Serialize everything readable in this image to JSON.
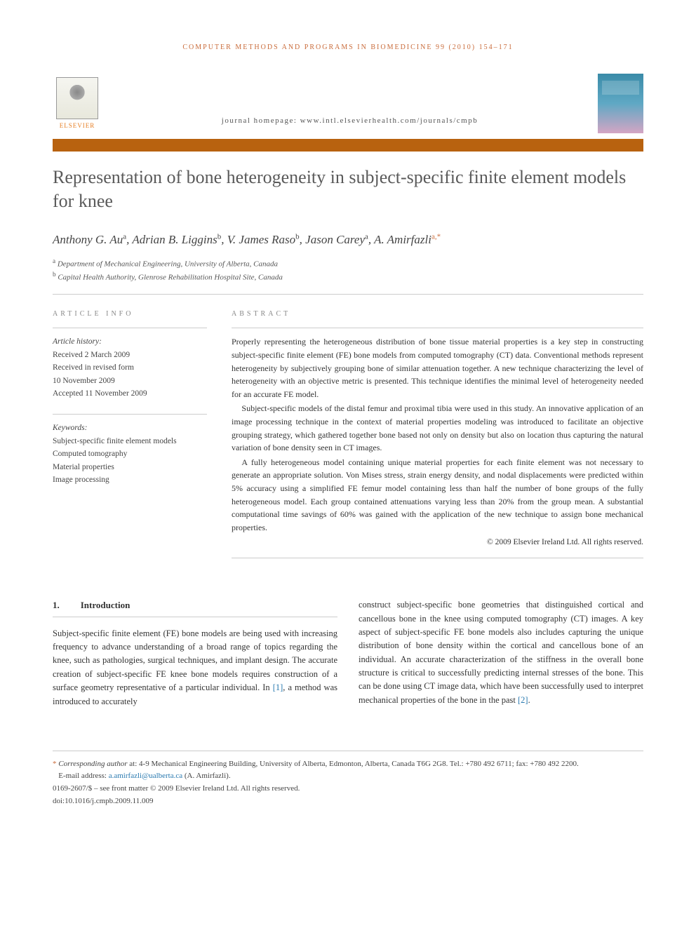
{
  "running_header": "COMPUTER METHODS AND PROGRAMS IN BIOMEDICINE 99 (2010) 154–171",
  "publisher_name": "ELSEVIER",
  "journal_homepage_label": "journal homepage: www.intl.elsevierhealth.com/journals/cmpb",
  "title": "Representation of bone heterogeneity in subject-specific finite element models for knee",
  "authors_html": "Anthony G. Au",
  "authors": [
    {
      "name": "Anthony G. Au",
      "aff": "a"
    },
    {
      "name": "Adrian B. Liggins",
      "aff": "b"
    },
    {
      "name": "V. James Raso",
      "aff": "b"
    },
    {
      "name": "Jason Carey",
      "aff": "a"
    },
    {
      "name": "A. Amirfazli",
      "aff": "a,*"
    }
  ],
  "affiliations": [
    {
      "sup": "a",
      "text": "Department of Mechanical Engineering, University of Alberta, Canada"
    },
    {
      "sup": "b",
      "text": "Capital Health Authority, Glenrose Rehabilitation Hospital Site, Canada"
    }
  ],
  "article_info_label": "ARTICLE INFO",
  "abstract_label": "ABSTRACT",
  "history": {
    "label": "Article history:",
    "received": "Received 2 March 2009",
    "revised_label": "Received in revised form",
    "revised_date": "10 November 2009",
    "accepted": "Accepted 11 November 2009"
  },
  "keywords_label": "Keywords:",
  "keywords": [
    "Subject-specific finite element models",
    "Computed tomography",
    "Material properties",
    "Image processing"
  ],
  "abstract": {
    "p1": "Properly representing the heterogeneous distribution of bone tissue material properties is a key step in constructing subject-specific finite element (FE) bone models from computed tomography (CT) data. Conventional methods represent heterogeneity by subjectively grouping bone of similar attenuation together. A new technique characterizing the level of heterogeneity with an objective metric is presented. This technique identifies the minimal level of heterogeneity needed for an accurate FE model.",
    "p2": "Subject-specific models of the distal femur and proximal tibia were used in this study. An innovative application of an image processing technique in the context of material properties modeling was introduced to facilitate an objective grouping strategy, which gathered together bone based not only on density but also on location thus capturing the natural variation of bone density seen in CT images.",
    "p3": "A fully heterogeneous model containing unique material properties for each finite element was not necessary to generate an appropriate solution. Von Mises stress, strain energy density, and nodal displacements were predicted within 5% accuracy using a simplified FE femur model containing less than half the number of bone groups of the fully heterogeneous model. Each group contained attenuations varying less than 20% from the group mean. A substantial computational time savings of 60% was gained with the application of the new technique to assign bone mechanical properties."
  },
  "copyright": "© 2009 Elsevier Ireland Ltd. All rights reserved.",
  "section1": {
    "num": "1.",
    "title": "Introduction"
  },
  "body": {
    "col1": "Subject-specific finite element (FE) bone models are being used with increasing frequency to advance understanding of a broad range of topics regarding the knee, such as pathologies, surgical techniques, and implant design. The accurate creation of subject-specific FE knee bone models requires construction of a surface geometry representative of a particular individual. In ",
    "cite1": "[1]",
    "col1b": ", a method was introduced to accurately",
    "col2": "construct subject-specific bone geometries that distinguished cortical and cancellous bone in the knee using computed tomography (CT) images. A key aspect of subject-specific FE bone models also includes capturing the unique distribution of bone density within the cortical and cancellous bone of an individual. An accurate characterization of the stiffness in the overall bone structure is critical to successfully predicting internal stresses of the bone. This can be done using CT image data, which have been successfully used to interpret mechanical properties of the bone in the past ",
    "cite2": "[2]",
    "col2b": "."
  },
  "footnotes": {
    "corr_label": "Corresponding author",
    "corr_text": " at: 4-9 Mechanical Engineering Building, University of Alberta, Edmonton, Alberta, Canada T6G 2G8. Tel.: +780 492 6711; fax: +780 492 2200.",
    "email_label": "E-mail address: ",
    "email": "a.amirfazli@ualberta.ca",
    "email_suffix": " (A. Amirfazli).",
    "issn": "0169-2607/$ – see front matter © 2009 Elsevier Ireland Ltd. All rights reserved.",
    "doi": "doi:10.1016/j.cmpb.2009.11.009"
  },
  "colors": {
    "accent_orange": "#c96b3a",
    "bar_orange": "#b8620f",
    "link_blue": "#2a7ab0",
    "text_gray": "#333333"
  }
}
